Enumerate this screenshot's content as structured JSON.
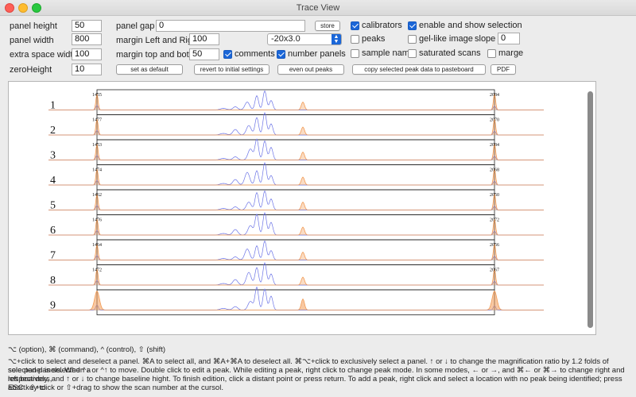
{
  "window": {
    "title": "Trace View"
  },
  "controls": {
    "panel_height_label": "panel height",
    "panel_height_value": "50",
    "panel_width_label": "panel width",
    "panel_width_value": "800",
    "extra_space_width_label": "extra space width",
    "extra_space_width_value": "100",
    "zero_height_label": "zeroHeight",
    "zero_height_value": "10",
    "panel_gap_label": "panel gap",
    "panel_gap_value": "0",
    "margin_lr_label": "margin Left and Right",
    "margin_lr_value": "100",
    "margin_tb_label": "margin top and bottom",
    "margin_tb_value": "50",
    "magnification_value": "-20x3.0",
    "slope_label": "slope",
    "slope_value": "0"
  },
  "checkboxes": {
    "calibrators": {
      "label": "calibrators",
      "checked": true
    },
    "enable_selection": {
      "label": "enable and show selection",
      "checked": true
    },
    "peaks": {
      "label": "peaks",
      "checked": false
    },
    "gel_like": {
      "label": "gel-like image",
      "checked": false
    },
    "comments": {
      "label": "comments",
      "checked": true
    },
    "number_panels": {
      "label": "number panels",
      "checked": true
    },
    "sample_name": {
      "label": "sample name",
      "checked": false
    },
    "saturated_scans": {
      "label": "saturated scans",
      "checked": false
    },
    "marge": {
      "label": "marge",
      "checked": false
    }
  },
  "buttons": {
    "store": "store",
    "set_default": "set as default",
    "revert": "revert to initial settings",
    "even_out": "even out peaks",
    "copy_peak": "copy selected peak data to pasteboard",
    "pdf": "PDF"
  },
  "colors": {
    "trace_blue": "#6b73e6",
    "trace_orange": "#f29b55",
    "accent": "#1a66d8"
  },
  "panels": [
    {
      "number": "1",
      "left_peak_label": "1455",
      "right_peak_label": "2084"
    },
    {
      "number": "2",
      "left_peak_label": "1477",
      "right_peak_label": "2070"
    },
    {
      "number": "3",
      "left_peak_label": "1453",
      "right_peak_label": "2084"
    },
    {
      "number": "4",
      "left_peak_label": "1474",
      "right_peak_label": "2068"
    },
    {
      "number": "5",
      "left_peak_label": "1462",
      "right_peak_label": "2050"
    },
    {
      "number": "6",
      "left_peak_label": "1476",
      "right_peak_label": "2072"
    },
    {
      "number": "7",
      "left_peak_label": "1464",
      "right_peak_label": "2056"
    },
    {
      "number": "8",
      "left_peak_label": "1472",
      "right_peak_label": "2067"
    },
    {
      "number": "9",
      "left_peak_label": "",
      "right_peak_label": ""
    }
  ],
  "help": {
    "legend": "⌥ (option), ⌘ (command), ^ (control), ⇧ (shift)",
    "line1": "⌥+click to select and deselect a panel. ⌘A to select all, and ⌘A+⌘A to deselect all. ⌘⌥+click to exclusively select a panel. ↑ or ↓ to change the magnification ratio by 1.2 folds of selected panels. When a",
    "line2": "sole panel is selected ^↓ or ^↑ to move.  Double click to edit a peak. While editing a peak, right click to change peak mode.  In some modes, ← or →, and ⌘← or ⌘→ to change right and left boarders,",
    "line3": "respectively, and ↑ or ↓ to  change baseline hight. To finish edition, click a distant point or press return. To add a peak, right click and select a location with no peak being identified; press ESC key to",
    "line4": "abort. ⇧+click or ⇧+drag to show the scan number at the cursol."
  }
}
